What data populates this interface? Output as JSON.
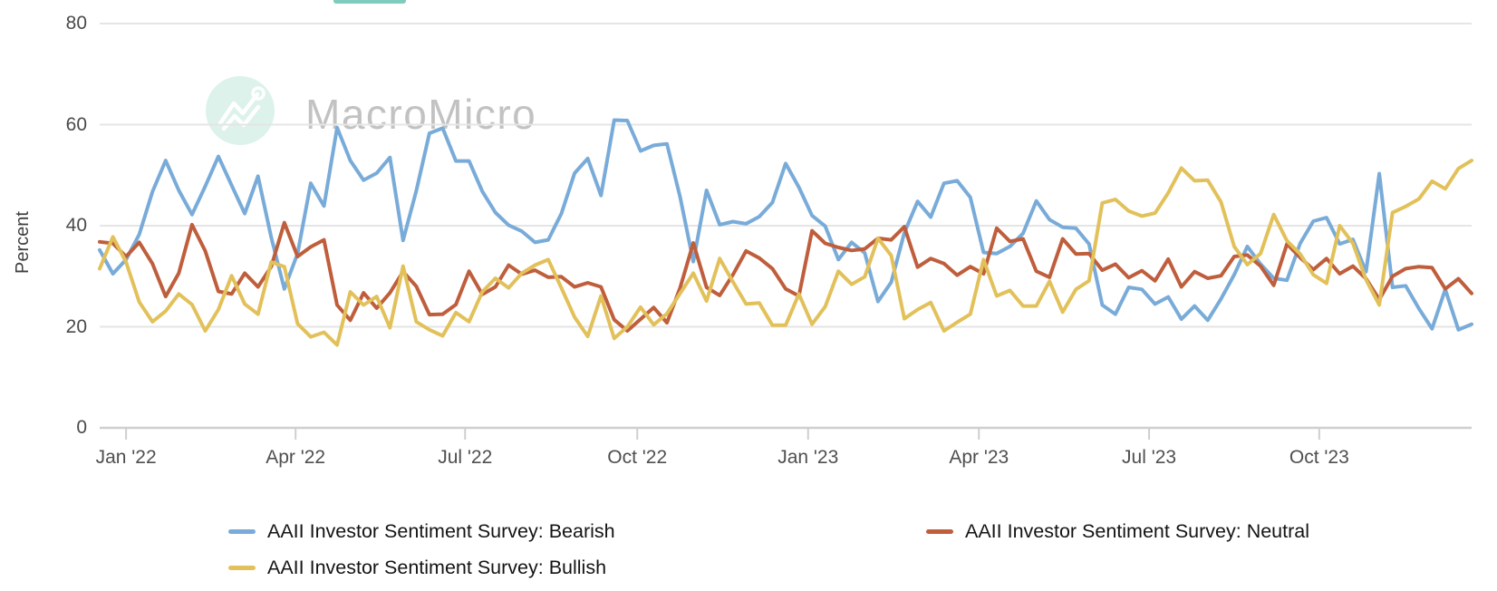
{
  "watermark": {
    "brand": "MacroMicro"
  },
  "top_fragment": {
    "color": "#7fccbc"
  },
  "colors": {
    "bearish_line": "#79abd9",
    "neutral_line": "#bf5e3c",
    "bullish_line": "#e2c15b",
    "gridline": "#e5e5e5",
    "axis_line": "#cfcfcf",
    "watermark_circle": "#dcf2ea",
    "tick_text": "#4a4a4a"
  },
  "chart_data": {
    "type": "line",
    "title": "",
    "xlabel": "",
    "ylabel": "Percent",
    "ylim": [
      0,
      80
    ],
    "yticks": [
      0,
      20,
      40,
      60,
      80
    ],
    "grid": "horizontal",
    "legend_position": "bottom",
    "x_unit": "week",
    "n_points": 105,
    "x_range_weeks": [
      0,
      104
    ],
    "x_tick_labels": [
      "Jan '22",
      "Apr '22",
      "Jul '22",
      "Oct '22",
      "Jan '23",
      "Apr '23",
      "Jul '23",
      "Oct '23"
    ],
    "x_tick_weeks": [
      2.0,
      14.85,
      27.7,
      40.75,
      53.7,
      66.65,
      79.55,
      92.45
    ],
    "series": [
      {
        "name": "AAII Investor Sentiment Survey: Bearish",
        "color": "#79abd9",
        "values": [
          35.2,
          30.5,
          33.3,
          38.3,
          46.7,
          52.9,
          47.0,
          42.2,
          47.8,
          53.7,
          48.0,
          42.4,
          49.8,
          37.7,
          27.5,
          34.5,
          48.4,
          43.9,
          59.4,
          52.9,
          49.0,
          50.4,
          53.5,
          37.1,
          46.9,
          58.3,
          59.3,
          52.8,
          52.8,
          46.8,
          42.6,
          40.1,
          38.9,
          36.7,
          37.2,
          42.4,
          50.4,
          53.3,
          46.0,
          60.9,
          60.8,
          54.8,
          55.9,
          56.2,
          45.7,
          32.9,
          47.0,
          40.2,
          40.8,
          40.4,
          41.8,
          44.6,
          52.3,
          47.6,
          42.0,
          39.9,
          33.3,
          36.7,
          34.6,
          25.0,
          28.8,
          38.6,
          44.8,
          41.7,
          48.4,
          48.9,
          45.6,
          34.7,
          34.5,
          35.9,
          38.5,
          44.9,
          41.2,
          39.7,
          39.5,
          36.4,
          24.3,
          22.5,
          27.8,
          27.4,
          24.5,
          25.9,
          21.5,
          24.1,
          21.3,
          25.5,
          30.3,
          35.9,
          32.4,
          29.6,
          29.2,
          36.5,
          40.9,
          41.6,
          36.4,
          37.3,
          30.9,
          50.3,
          27.8,
          28.1,
          23.6,
          19.6,
          27.4,
          19.4,
          20.5
        ]
      },
      {
        "name": "AAII Investor Sentiment Survey: Neutral",
        "color": "#bf5e3c",
        "values": [
          36.8,
          36.5,
          33.9,
          36.7,
          32.5,
          26.0,
          30.6,
          40.2,
          35.0,
          27.0,
          26.5,
          30.6,
          27.9,
          31.9,
          40.6,
          33.9,
          35.8,
          37.2,
          24.3,
          21.3,
          26.7,
          23.7,
          26.7,
          30.9,
          28.0,
          22.4,
          22.5,
          24.4,
          31.0,
          26.4,
          27.9,
          32.2,
          30.4,
          31.2,
          29.8,
          29.9,
          27.9,
          28.7,
          27.9,
          21.4,
          19.2,
          21.5,
          23.8,
          20.8,
          27.7,
          36.6,
          27.8,
          26.2,
          30.3,
          35.0,
          33.6,
          31.5,
          27.5,
          26.1,
          39.0,
          36.5,
          35.7,
          35.1,
          35.4,
          37.5,
          37.2,
          39.8,
          31.8,
          33.5,
          32.5,
          30.2,
          31.9,
          30.5,
          39.5,
          36.9,
          37.4,
          31.0,
          29.8,
          37.4,
          34.4,
          34.5,
          31.2,
          32.4,
          29.7,
          31.1,
          29.1,
          33.4,
          27.9,
          30.9,
          29.6,
          30.1,
          33.9,
          34.2,
          32.0,
          28.2,
          36.4,
          33.7,
          31.3,
          33.5,
          30.5,
          32.0,
          29.5,
          25.4,
          30.0,
          31.5,
          31.9,
          31.7,
          27.5,
          29.5,
          26.6
        ]
      },
      {
        "name": "AAII Investor Sentiment Survey: Bullish",
        "color": "#e2c15b",
        "values": [
          31.5,
          37.8,
          32.8,
          24.9,
          21.0,
          23.1,
          26.5,
          24.4,
          19.2,
          23.4,
          30.1,
          24.5,
          22.5,
          32.8,
          31.9,
          20.6,
          18.0,
          18.9,
          16.4,
          26.9,
          24.3,
          26.0,
          19.8,
          32.0,
          21.0,
          19.4,
          18.2,
          22.8,
          21.0,
          26.9,
          29.6,
          27.7,
          30.6,
          32.2,
          33.3,
          27.7,
          21.9,
          18.1,
          26.1,
          17.7,
          20.0,
          23.9,
          20.4,
          22.6,
          26.6,
          30.6,
          25.1,
          33.5,
          28.9,
          24.5,
          24.7,
          20.3,
          20.3,
          26.5,
          20.5,
          24.0,
          31.0,
          28.4,
          29.9,
          37.5,
          34.1,
          21.6,
          23.4,
          24.8,
          19.2,
          20.9,
          22.5,
          33.3,
          26.1,
          27.2,
          24.1,
          24.1,
          29.0,
          22.9,
          27.4,
          29.1,
          44.5,
          45.2,
          42.9,
          41.9,
          42.5,
          46.5,
          51.4,
          48.9,
          49.0,
          44.7,
          35.9,
          32.3,
          34.5,
          42.2,
          37.0,
          34.4,
          30.3,
          28.6,
          40.0,
          36.5,
          29.3,
          24.3,
          42.6,
          43.8,
          45.3,
          48.8,
          47.3,
          51.3,
          52.9
        ]
      }
    ]
  }
}
